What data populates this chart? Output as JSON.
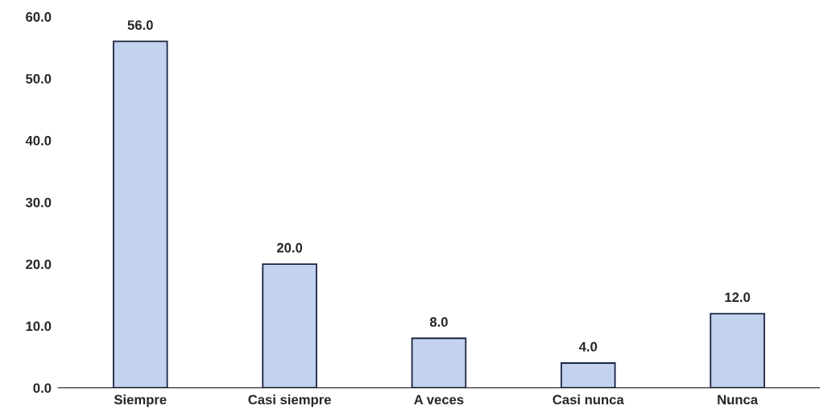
{
  "chart_data": {
    "type": "bar",
    "categories": [
      "Siempre",
      "Casi siempre",
      "A veces",
      "Casi nunca",
      "Nunca"
    ],
    "values": [
      56.0,
      20.0,
      8.0,
      4.0,
      12.0
    ],
    "color": "#c3d2ee",
    "ylim": [
      0,
      60
    ],
    "yticks": [
      {
        "value": 0,
        "label": "0.0"
      },
      {
        "value": 10,
        "label": "10.0"
      },
      {
        "value": 20,
        "label": "20.0"
      },
      {
        "value": 30,
        "label": "30.0"
      },
      {
        "value": 40,
        "label": "40.0"
      },
      {
        "value": 50,
        "label": "50.0"
      },
      {
        "value": 60,
        "label": "60.0"
      }
    ],
    "value_labels": [
      "56.0",
      "20.0",
      "8.0",
      "4.0",
      "12.0"
    ],
    "grid": false,
    "legend": false
  }
}
